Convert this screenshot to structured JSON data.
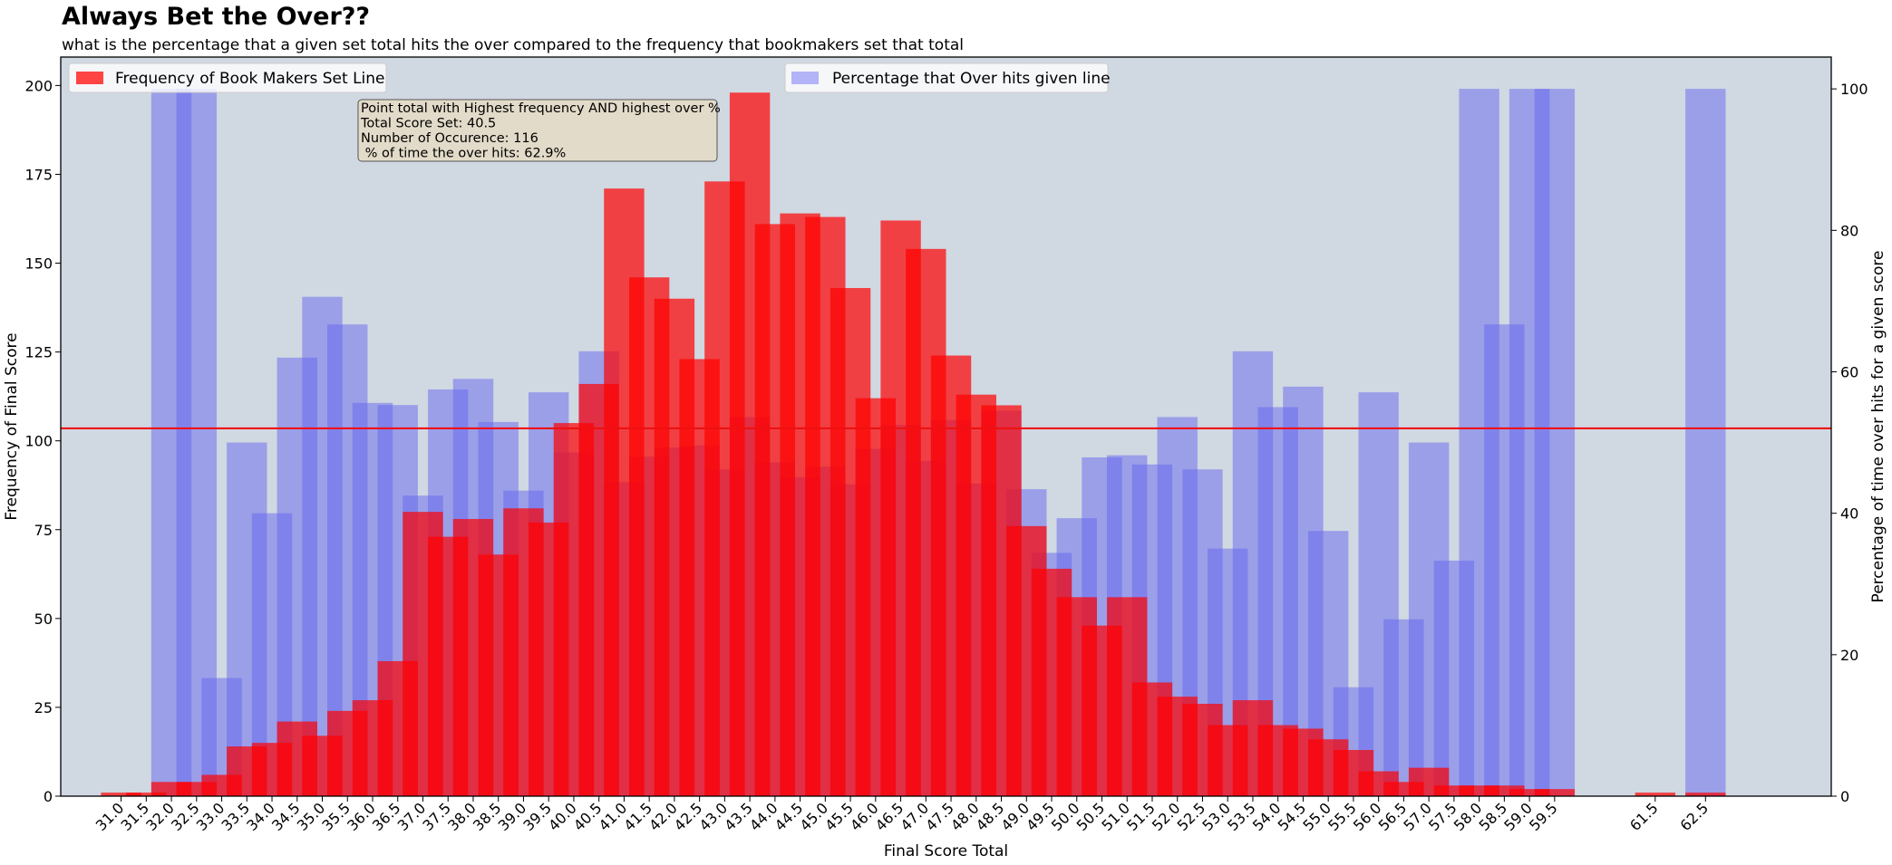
{
  "chart_data": {
    "type": "bar",
    "title": "Always Bet the Over??",
    "subtitle": "what is the percentage that a given set total hits the over compared to the frequency that bookmakers set that total",
    "xlabel": "Final Score Total",
    "ylabel": "Frequency of Final Score",
    "ylabel_right": "Percentage of time over hits for a given score",
    "ylim": [
      0,
      208
    ],
    "ylim_right": [
      0,
      104.5
    ],
    "xlim": [
      29.8,
      65.0
    ],
    "yticks": [
      0,
      25,
      50,
      75,
      100,
      125,
      150,
      175,
      200
    ],
    "yticks_right": [
      0,
      20,
      40,
      60,
      80,
      100
    ],
    "categories": [
      "31.0",
      "31.5",
      "32.0",
      "32.5",
      "33.0",
      "33.5",
      "34.0",
      "34.5",
      "35.0",
      "35.5",
      "36.0",
      "36.5",
      "37.0",
      "37.5",
      "38.0",
      "38.5",
      "39.0",
      "39.5",
      "40.0",
      "40.5",
      "41.0",
      "41.5",
      "42.0",
      "42.5",
      "43.0",
      "43.5",
      "44.0",
      "44.5",
      "45.0",
      "45.5",
      "46.0",
      "46.5",
      "47.0",
      "47.5",
      "48.0",
      "48.5",
      "49.0",
      "49.5",
      "50.0",
      "50.5",
      "51.0",
      "51.5",
      "52.0",
      "52.5",
      "53.0",
      "53.5",
      "54.0",
      "54.5",
      "55.0",
      "55.5",
      "56.0",
      "56.5",
      "57.0",
      "57.5",
      "58.0",
      "58.5",
      "59.0",
      "59.5",
      "61.5",
      "62.5"
    ],
    "series": [
      {
        "name": "Frequency of Book Makers Set Line",
        "axis": "left",
        "color": "#ff0000",
        "values": [
          1,
          1,
          4,
          4,
          6,
          14,
          15,
          21,
          17,
          24,
          27,
          38,
          80,
          73,
          78,
          68,
          81,
          77,
          105,
          116,
          171,
          146,
          140,
          123,
          173,
          198,
          161,
          164,
          163,
          143,
          112,
          162,
          154,
          124,
          113,
          110,
          76,
          64,
          56,
          48,
          56,
          32,
          28,
          26,
          20,
          27,
          20,
          19,
          16,
          13,
          7,
          4,
          8,
          3,
          3,
          3,
          2,
          2,
          1,
          1
        ]
      },
      {
        "name": "Percentage that Over hits given line",
        "axis": "right",
        "color": "#6666ee",
        "values": [
          0,
          0,
          100,
          100,
          16.7,
          50,
          40,
          62,
          70.6,
          66.7,
          55.6,
          55.3,
          42.5,
          57.5,
          59,
          52.9,
          43.2,
          57.1,
          48.6,
          62.9,
          44.4,
          48,
          49.3,
          49.6,
          46.2,
          53.6,
          47.2,
          45.1,
          46.6,
          44.1,
          49.1,
          52.5,
          47.4,
          53.2,
          44.2,
          54.5,
          43.4,
          34.4,
          39.3,
          47.9,
          48.2,
          46.9,
          53.6,
          46.2,
          35,
          62.9,
          55,
          57.9,
          37.5,
          15.4,
          57.1,
          25,
          50,
          33.3,
          100,
          66.7,
          100,
          100,
          0,
          100
        ]
      }
    ],
    "hline": {
      "value": 103.5,
      "axis": "left",
      "color": "#ee1111"
    },
    "legend": [
      {
        "label": "Frequency of Book Makers Set Line",
        "color": "#ff4444",
        "placement": "upper-left"
      },
      {
        "label": "Percentage that Over hits given line",
        "color": "#b3b3f7",
        "placement": "upper-center"
      }
    ],
    "annotation": {
      "lines": [
        "Point total with Highest frequency AND highest over %",
        "Total Score Set: 40.5",
        "Number of Occurence: 116",
        " % of time the over hits: 62.9%"
      ]
    },
    "colors": {
      "plot_background": "#d0d8e2",
      "red_bar": "#ff0000",
      "blue_bar": "#6666ee",
      "annotation_bg": "#e3dbc9"
    }
  }
}
